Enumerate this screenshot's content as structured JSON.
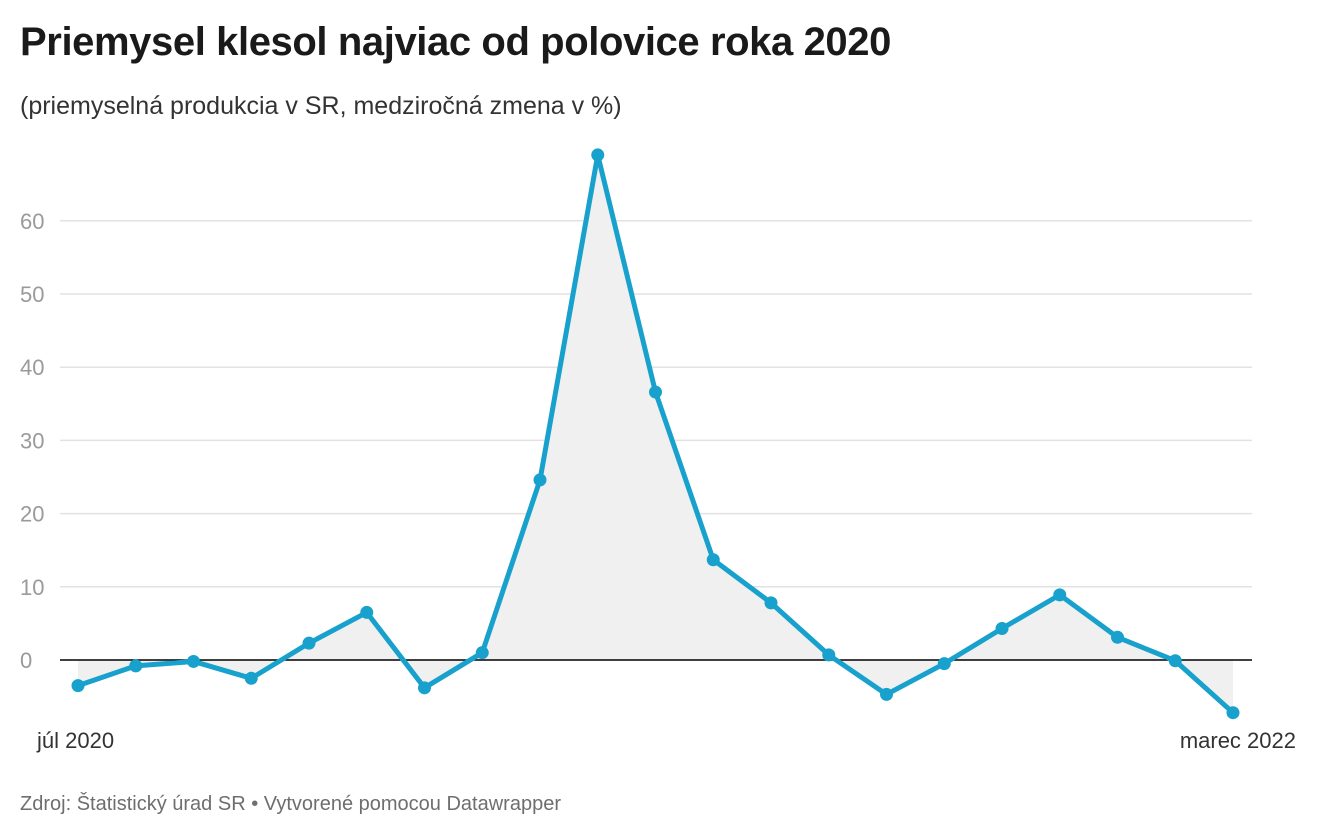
{
  "header": {
    "title": "Priemysel klesol najviac od polovice roka 2020",
    "subtitle": "(priemyselná produkcia v SR, medziročná zmena v %)"
  },
  "footer": {
    "source_label": "Zdroj:",
    "source": "Štatistický úrad SR",
    "separator": "•",
    "credit": "Vytvorené pomocou Datawrapper"
  },
  "chart_data": {
    "type": "line",
    "title": "Priemysel klesol najviac od polovice roka 2020",
    "subtitle": "(priemyselná produkcia v SR, medziročná zmena v %)",
    "x": [
      "2020-07",
      "2020-08",
      "2020-09",
      "2020-10",
      "2020-11",
      "2020-12",
      "2021-01",
      "2021-02",
      "2021-03",
      "2021-04",
      "2021-05",
      "2021-06",
      "2021-07",
      "2021-08",
      "2021-09",
      "2021-10",
      "2021-11",
      "2021-12",
      "2022-01",
      "2022-02",
      "2022-03"
    ],
    "x_tick_labels": [
      {
        "x": "2020-07",
        "label": "júl 2020"
      },
      {
        "x": "2022-03",
        "label": "marec 2022"
      }
    ],
    "series": [
      {
        "values": [
          -3.5,
          -0.8,
          -0.2,
          -2.5,
          2.3,
          6.5,
          -3.8,
          1.0,
          24.6,
          69.0,
          36.6,
          13.7,
          7.8,
          0.7,
          -4.7,
          -0.5,
          4.3,
          8.9,
          3.1,
          -0.1,
          -7.2
        ],
        "color": "#18a1cd"
      }
    ],
    "y_ticks": [
      0,
      10,
      20,
      30,
      40,
      50,
      60
    ],
    "ylim": [
      -7.2,
      69
    ],
    "grid": true,
    "area_fill": "#f0f0f0",
    "zero_line_color": "#000000",
    "legend": "none"
  }
}
